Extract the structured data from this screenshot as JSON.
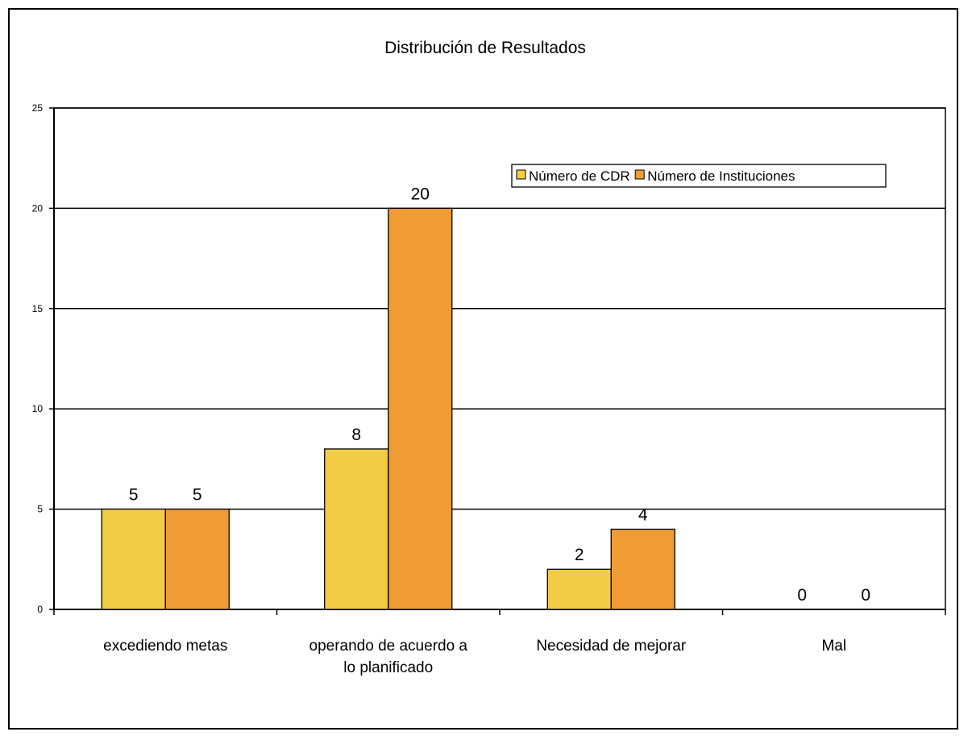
{
  "chart_data": {
    "type": "bar",
    "title": "Distribución de Resultados",
    "xlabel": "",
    "ylabel": "",
    "ylim": [
      0,
      25
    ],
    "yticks": [
      0,
      5,
      10,
      15,
      20,
      25
    ],
    "grid": true,
    "legend_position": "top-right",
    "categories": [
      [
        "excediendo metas"
      ],
      [
        "operando de acuerdo a",
        "lo planificado"
      ],
      [
        "Necesidad de mejorar"
      ],
      [
        "Mal"
      ]
    ],
    "series": [
      {
        "name": "Número de CDR",
        "color": "#f2cc45",
        "values": [
          5,
          8,
          2,
          0
        ]
      },
      {
        "name": "Número de Instituciones",
        "color": "#f09c35",
        "values": [
          5,
          20,
          4,
          0
        ]
      }
    ]
  }
}
